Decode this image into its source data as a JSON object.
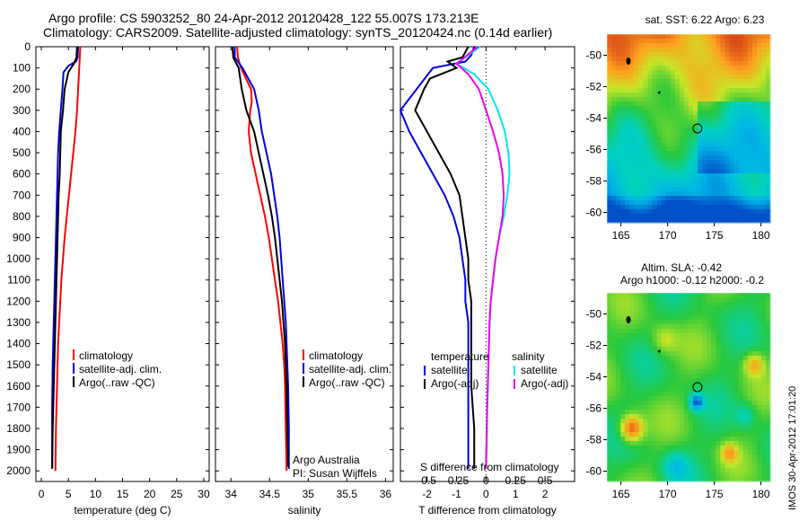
{
  "title": {
    "line1": "Argo profile: CS 5903252_80 24-Apr-2012 20120428_122 55.007S 173.213E",
    "line2": "Climatology: CARS2009. Satellite-adjusted climatology: synTS_20120424.nc (0.14d earlier)"
  },
  "timestamp": "IMOS 30-Apr-2012 17:01:20",
  "colors": {
    "climatology": "#ff0000",
    "satellite": "#0000dd",
    "argo": "#000000",
    "sal_sat": "#00e5ee",
    "sal_argo": "#ee00ee"
  },
  "chart_data": [
    {
      "id": "temperature",
      "type": "line",
      "xlabel": "temperature (deg C)",
      "xlim": [
        -1,
        31
      ],
      "ylim": [
        0,
        2050
      ],
      "xticks": [
        "0",
        "5",
        "10",
        "15",
        "20",
        "25",
        "30"
      ],
      "yticks": [
        "0",
        "100",
        "200",
        "300",
        "400",
        "500",
        "600",
        "700",
        "800",
        "900",
        "1000",
        "1100",
        "1200",
        "1300",
        "1400",
        "1500",
        "1600",
        "1700",
        "1800",
        "1900",
        "2000"
      ],
      "legend": [
        "climatology",
        "satellite-adj. clim.",
        "Argo(..raw -QC)"
      ],
      "series": [
        {
          "name": "climatology",
          "color": "#ff0000",
          "x": [
            7.2,
            7.1,
            7.0,
            6.9,
            6.8,
            6.6,
            6.3,
            5.9,
            5.5,
            5.1,
            4.7,
            4.3,
            4.0,
            3.7,
            3.5,
            3.3,
            3.1,
            3.0,
            2.9,
            2.8,
            2.7,
            2.6
          ],
          "y": [
            0,
            50,
            100,
            150,
            200,
            300,
            400,
            500,
            600,
            700,
            800,
            900,
            1000,
            1100,
            1200,
            1300,
            1400,
            1500,
            1600,
            1700,
            1800,
            2000
          ]
        },
        {
          "name": "satellite-adj. clim.",
          "color": "#0000dd",
          "x": [
            6.8,
            6.7,
            6.4,
            5.0,
            4.1,
            3.9,
            3.6,
            3.3,
            3.1,
            3.0,
            2.9,
            2.8,
            2.7,
            2.6,
            2.5,
            2.4,
            2.3,
            2.2,
            2.1,
            2.0,
            2.0
          ],
          "y": [
            0,
            50,
            70,
            90,
            120,
            200,
            300,
            400,
            500,
            600,
            700,
            800,
            900,
            1000,
            1100,
            1200,
            1300,
            1400,
            1500,
            1700,
            1980
          ]
        },
        {
          "name": "Argo(..raw -QC)",
          "color": "#000000",
          "x": [
            6.6,
            6.5,
            6.0,
            5.0,
            4.3,
            4.0,
            3.6,
            3.5,
            3.4,
            3.2,
            3.1,
            3.0,
            2.9,
            2.8,
            2.7,
            2.6,
            2.5,
            2.4,
            2.3,
            2.2,
            2.1,
            2.0
          ],
          "y": [
            0,
            50,
            80,
            120,
            200,
            300,
            400,
            500,
            600,
            700,
            800,
            900,
            1000,
            1100,
            1200,
            1300,
            1400,
            1500,
            1600,
            1700,
            1800,
            1990
          ]
        }
      ]
    },
    {
      "id": "salinity",
      "type": "line",
      "xlabel": "salinity",
      "xlim": [
        33.8,
        36.1
      ],
      "ylim": [
        0,
        2050
      ],
      "xticks": [
        "34",
        "34.5",
        "35",
        "35.5",
        "36"
      ],
      "legend": [
        "climatology",
        "satellite-adj. clim.",
        "Argo(..raw -QC)"
      ],
      "annotation": [
        "Argo Australia",
        "PI: Susan Wijffels"
      ],
      "series": [
        {
          "name": "climatology",
          "color": "#ff0000",
          "x": [
            34.08,
            34.09,
            34.13,
            34.26,
            34.27,
            34.25,
            34.23,
            34.26,
            34.32,
            34.38,
            34.44,
            34.49,
            34.53,
            34.57,
            34.61,
            34.64,
            34.67,
            34.69,
            34.7,
            34.71,
            34.72
          ],
          "y": [
            0,
            50,
            100,
            200,
            260,
            300,
            400,
            500,
            600,
            700,
            800,
            900,
            1000,
            1100,
            1200,
            1300,
            1400,
            1500,
            1600,
            1800,
            2000
          ]
        },
        {
          "name": "satellite-adj. clim.",
          "color": "#0000dd",
          "x": [
            34.05,
            34.05,
            34.15,
            34.3,
            34.36,
            34.4,
            34.46,
            34.52,
            34.56,
            34.6,
            34.63,
            34.65,
            34.67,
            34.69,
            34.71,
            34.72,
            34.73,
            34.74,
            34.75,
            34.75
          ],
          "y": [
            0,
            50,
            100,
            200,
            300,
            400,
            500,
            600,
            700,
            800,
            900,
            1000,
            1100,
            1200,
            1300,
            1400,
            1500,
            1600,
            1800,
            1990
          ]
        },
        {
          "name": "Argo(..raw -QC)",
          "color": "#000000",
          "x": [
            34.02,
            34.03,
            34.1,
            34.14,
            34.2,
            34.3,
            34.36,
            34.42,
            34.48,
            34.53,
            34.57,
            34.6,
            34.63,
            34.66,
            34.68,
            34.7,
            34.71,
            34.72,
            34.73,
            34.74
          ],
          "y": [
            0,
            50,
            100,
            200,
            300,
            400,
            500,
            600,
            700,
            800,
            900,
            1000,
            1100,
            1200,
            1300,
            1400,
            1500,
            1600,
            1800,
            1980
          ]
        }
      ]
    },
    {
      "id": "difference",
      "type": "line",
      "xlabel": "T difference from climatology",
      "xlabel2": "S difference from climatology",
      "xlim": [
        -2.9,
        3.0
      ],
      "ylim": [
        0,
        2050
      ],
      "xticks": [
        "-2",
        "-1",
        "0",
        "1",
        "2"
      ],
      "xticks_s": [
        "-0.5",
        "-0.25",
        "0",
        "0.25",
        "0.5"
      ],
      "legend_t": {
        "title": "temperature",
        "items": [
          "satellite",
          "Argo(-adj)"
        ]
      },
      "legend_s": {
        "title": "salinity",
        "items": [
          "satellite",
          "Argo(-adj)"
        ]
      },
      "series": [
        {
          "name": "temperature satellite",
          "color": "#0000dd",
          "x": [
            -0.4,
            -0.5,
            -0.7,
            -1.8,
            -2.9,
            -2.6,
            -2.2,
            -1.8,
            -1.4,
            -1.1,
            -0.9,
            -0.8,
            -0.7,
            -0.7,
            -0.6,
            -0.6,
            -0.6,
            -0.6,
            -0.6,
            -0.6,
            -0.6
          ],
          "y": [
            0,
            40,
            70,
            100,
            300,
            400,
            500,
            600,
            700,
            800,
            900,
            1000,
            1100,
            1200,
            1300,
            1400,
            1500,
            1600,
            1700,
            1800,
            1990
          ]
        },
        {
          "name": "temperature Argo(-adj)",
          "color": "#000000",
          "x": [
            -0.6,
            -0.8,
            -1.3,
            -1.0,
            -1.9,
            -2.1,
            -2.4,
            -2.0,
            -1.6,
            -1.2,
            -0.9,
            -0.8,
            -0.7,
            -0.6,
            -0.6,
            -0.5,
            -0.5,
            -0.5,
            -0.5,
            -0.5,
            -0.4,
            -0.4
          ],
          "y": [
            0,
            50,
            70,
            100,
            150,
            200,
            300,
            400,
            500,
            600,
            700,
            800,
            900,
            1000,
            1100,
            1200,
            1300,
            1400,
            1500,
            1600,
            1800,
            1990
          ]
        },
        {
          "name": "salinity satellite",
          "color": "#00e5ee",
          "x": [
            -0.05,
            -0.25,
            -0.1,
            0.02,
            0.1,
            0.16,
            0.19,
            0.2,
            0.18,
            0.15,
            0.11,
            0.08,
            0.06,
            0.04,
            0.03,
            0.02,
            0.01,
            0.0
          ],
          "y": [
            0,
            80,
            130,
            200,
            300,
            400,
            500,
            600,
            700,
            800,
            900,
            1000,
            1100,
            1200,
            1300,
            1500,
            1700,
            1990
          ]
        },
        {
          "name": "salinity Argo(-adj)",
          "color": "#ee00ee",
          "x": [
            -0.07,
            -0.25,
            -0.15,
            -0.06,
            0.0,
            0.06,
            0.11,
            0.14,
            0.15,
            0.14,
            0.11,
            0.08,
            0.06,
            0.04,
            0.03,
            0.02,
            0.01,
            0.0
          ],
          "y": [
            0,
            80,
            130,
            200,
            300,
            400,
            500,
            600,
            700,
            800,
            900,
            1000,
            1100,
            1200,
            1300,
            1500,
            1700,
            1990
          ]
        }
      ]
    },
    {
      "id": "sst-map",
      "type": "heatmap",
      "title": "sat. SST: 6.22 Argo: 6.23",
      "xlim": [
        163.5,
        181
      ],
      "ylim": [
        -61,
        -49
      ],
      "xticks": [
        "165",
        "170",
        "175",
        "180"
      ],
      "yticks": [
        "-50",
        "-52",
        "-54",
        "-56",
        "-58",
        "-60"
      ],
      "marker": {
        "lon": 173.2,
        "lat": -55.0
      }
    },
    {
      "id": "sla-map",
      "type": "heatmap",
      "title": "Altim. SLA: -0.42",
      "subtitle": "Argo h1000: -0.12 h2000: -0.2",
      "xlim": [
        163.5,
        181
      ],
      "ylim": [
        -61,
        -49
      ],
      "xticks": [
        "165",
        "170",
        "175",
        "180"
      ],
      "yticks": [
        "-50",
        "-52",
        "-54",
        "-56",
        "-58",
        "-60"
      ],
      "marker": {
        "lon": 173.2,
        "lat": -55.0
      }
    }
  ]
}
